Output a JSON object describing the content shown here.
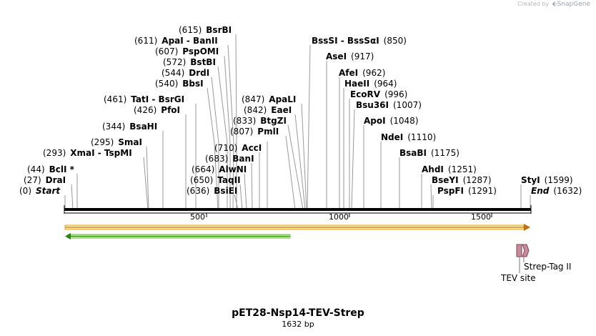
{
  "branding": {
    "created_by": "Created by",
    "product": "SnapGene"
  },
  "map": {
    "name": "pET28-Nsp14-TEV-Strep",
    "length_label": "1632 bp",
    "total_bp": 1632,
    "colors": {
      "backbone": "#000000",
      "orf": "#f0a020",
      "orf_fill": "#f7e8a0",
      "arrow2": "#6abf3a",
      "feature_pink": "#c9899b"
    }
  },
  "ticks": [
    "500",
    "1000",
    "1500"
  ],
  "sites": [
    {
      "pos": "(0)",
      "name": "Start",
      "italic": true
    },
    {
      "pos": "(27)",
      "name": "DraI"
    },
    {
      "pos": "(44)",
      "name": "BclI *"
    },
    {
      "pos": "(293)",
      "name": "XmaI  -  TspMI"
    },
    {
      "pos": "(295)",
      "name": "SmaI"
    },
    {
      "pos": "(344)",
      "name": "BsaHI"
    },
    {
      "pos": "(426)",
      "name": "PfoI"
    },
    {
      "pos": "(461)",
      "name": "TatI  -  BsrGI"
    },
    {
      "pos": "(540)",
      "name": "BbsI"
    },
    {
      "pos": "(544)",
      "name": "DrdI"
    },
    {
      "pos": "(572)",
      "name": "BstBI"
    },
    {
      "pos": "(607)",
      "name": "PspOMI"
    },
    {
      "pos": "(611)",
      "name": "ApaI  -  BanII"
    },
    {
      "pos": "(615)",
      "name": "BsrBI"
    },
    {
      "pos": "(636)",
      "name": "BsiEI"
    },
    {
      "pos": "(650)",
      "name": "TaqII"
    },
    {
      "pos": "(664)",
      "name": "AlwNI"
    },
    {
      "pos": "(683)",
      "name": "BanI"
    },
    {
      "pos": "(710)",
      "name": "AccI"
    },
    {
      "pos": "(807)",
      "name": "PmlI"
    },
    {
      "pos": "(833)",
      "name": "BtgZI"
    },
    {
      "pos": "(842)",
      "name": "EaeI"
    },
    {
      "pos": "(847)",
      "name": "ApaLI"
    },
    {
      "pos": "(850)",
      "name": "BssSI  -  BssSαI"
    },
    {
      "pos": "(917)",
      "name": "AseI"
    },
    {
      "pos": "(962)",
      "name": "AfeI"
    },
    {
      "pos": "(964)",
      "name": "HaeII"
    },
    {
      "pos": "(996)",
      "name": "EcoRV"
    },
    {
      "pos": "(1007)",
      "name": "Bsu36I"
    },
    {
      "pos": "(1048)",
      "name": "ApoI"
    },
    {
      "pos": "(1110)",
      "name": "NdeI"
    },
    {
      "pos": "(1175)",
      "name": "BsaBI"
    },
    {
      "pos": "(1251)",
      "name": "AhdI"
    },
    {
      "pos": "(1287)",
      "name": "BseYI"
    },
    {
      "pos": "(1291)",
      "name": "PspFI"
    },
    {
      "pos": "(1599)",
      "name": "StyI"
    },
    {
      "pos": "(1632)",
      "name": "End",
      "italic": true
    }
  ],
  "features": {
    "tev": "TEV site",
    "strep": "Strep-Tag II"
  }
}
